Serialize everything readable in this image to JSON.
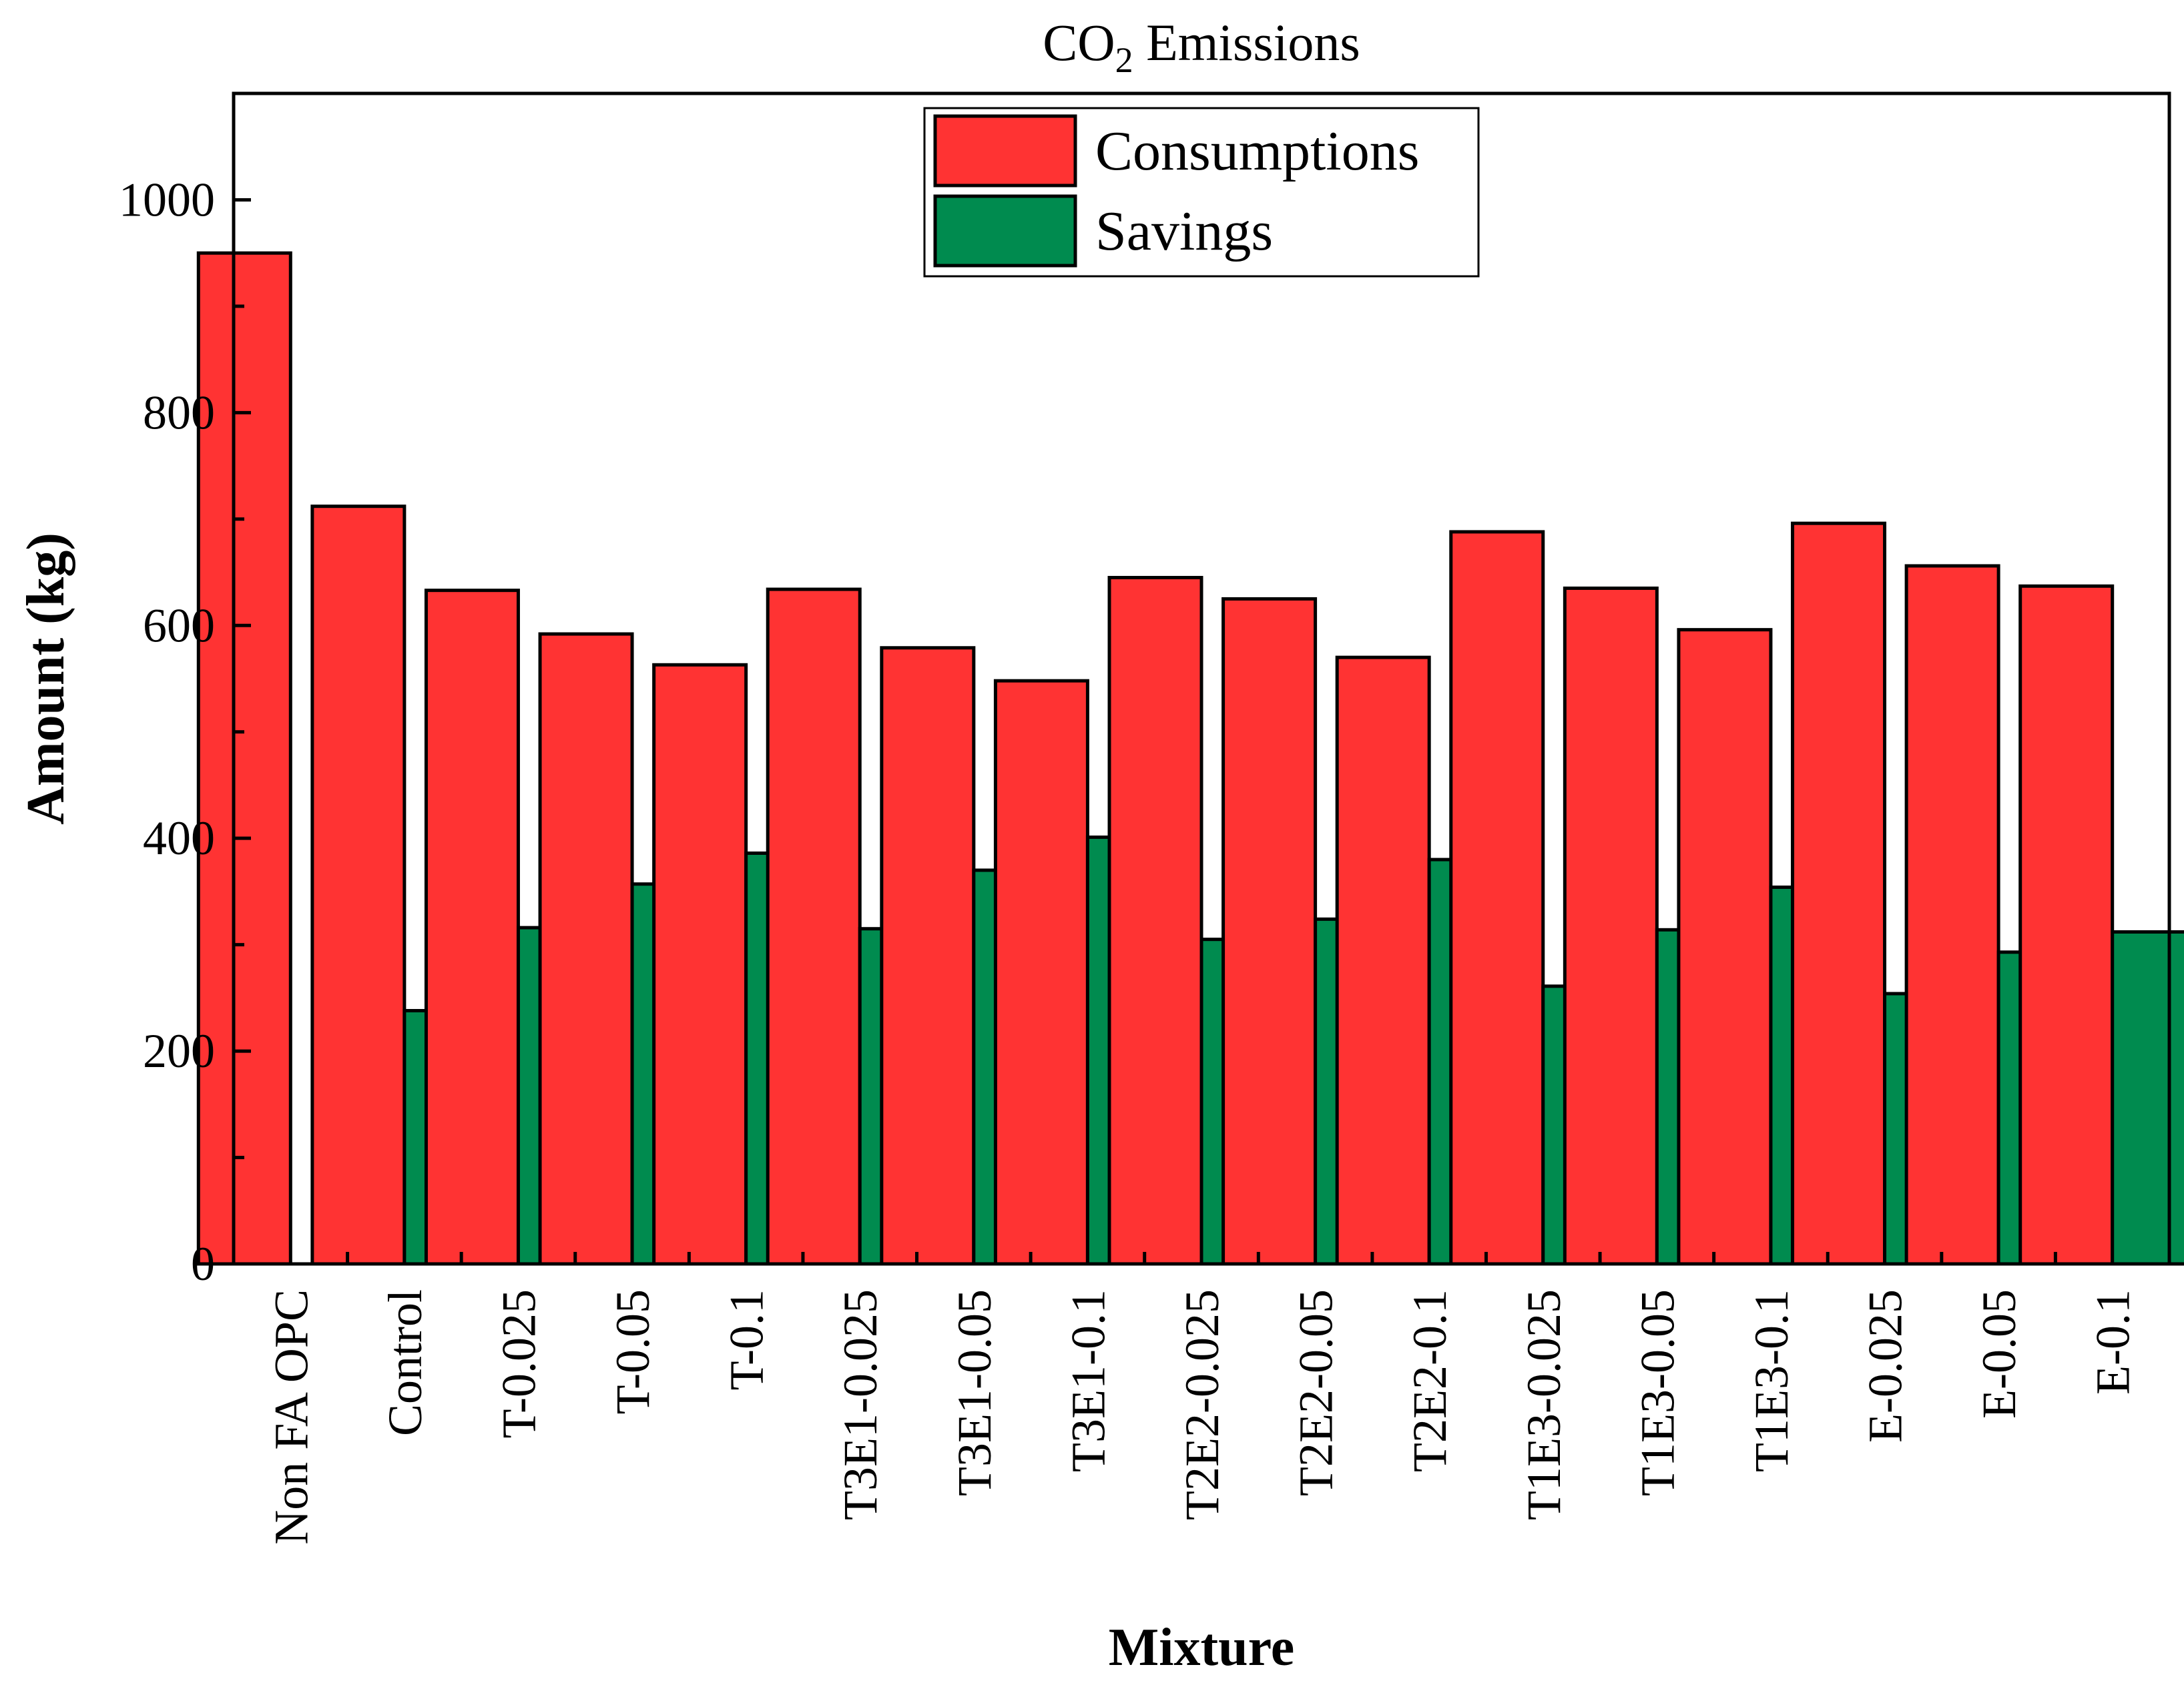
{
  "chart_data": {
    "type": "bar",
    "title": "CO",
    "title_subscript": "2",
    "title_suffix": " Emissions",
    "xlabel": "Mixture",
    "ylabel": "Amount (kg)",
    "ylim": [
      0,
      1100
    ],
    "yticks": [
      0,
      200,
      400,
      600,
      800,
      1000
    ],
    "grid": false,
    "legend_position": "top-center",
    "categories": [
      "Non FA OPC",
      "Control",
      "T-0.025",
      "T-0.05",
      "T-0.1",
      "T3E1-0.025",
      "T3E1-0.05",
      "T3E1-0.1",
      "T2E2-0.025",
      "T2E2-0.05",
      "T2E2-0.1",
      "T1E3-0.025",
      "T1E3-0.05",
      "T1E3-0.1",
      "E-0.025",
      "E-0.05",
      "E-0.1"
    ],
    "series": [
      {
        "name": "Consumptions",
        "color": "#ff3333",
        "values": [
          950,
          712,
          633,
          592,
          563,
          634,
          579,
          548,
          645,
          625,
          570,
          688,
          635,
          596,
          696,
          656,
          637
        ]
      },
      {
        "name": "Savings",
        "color": "#008b4f",
        "values": [
          0,
          238,
          316,
          357,
          386,
          315,
          370,
          401,
          305,
          324,
          380,
          261,
          314,
          354,
          254,
          293,
          312
        ]
      }
    ]
  }
}
